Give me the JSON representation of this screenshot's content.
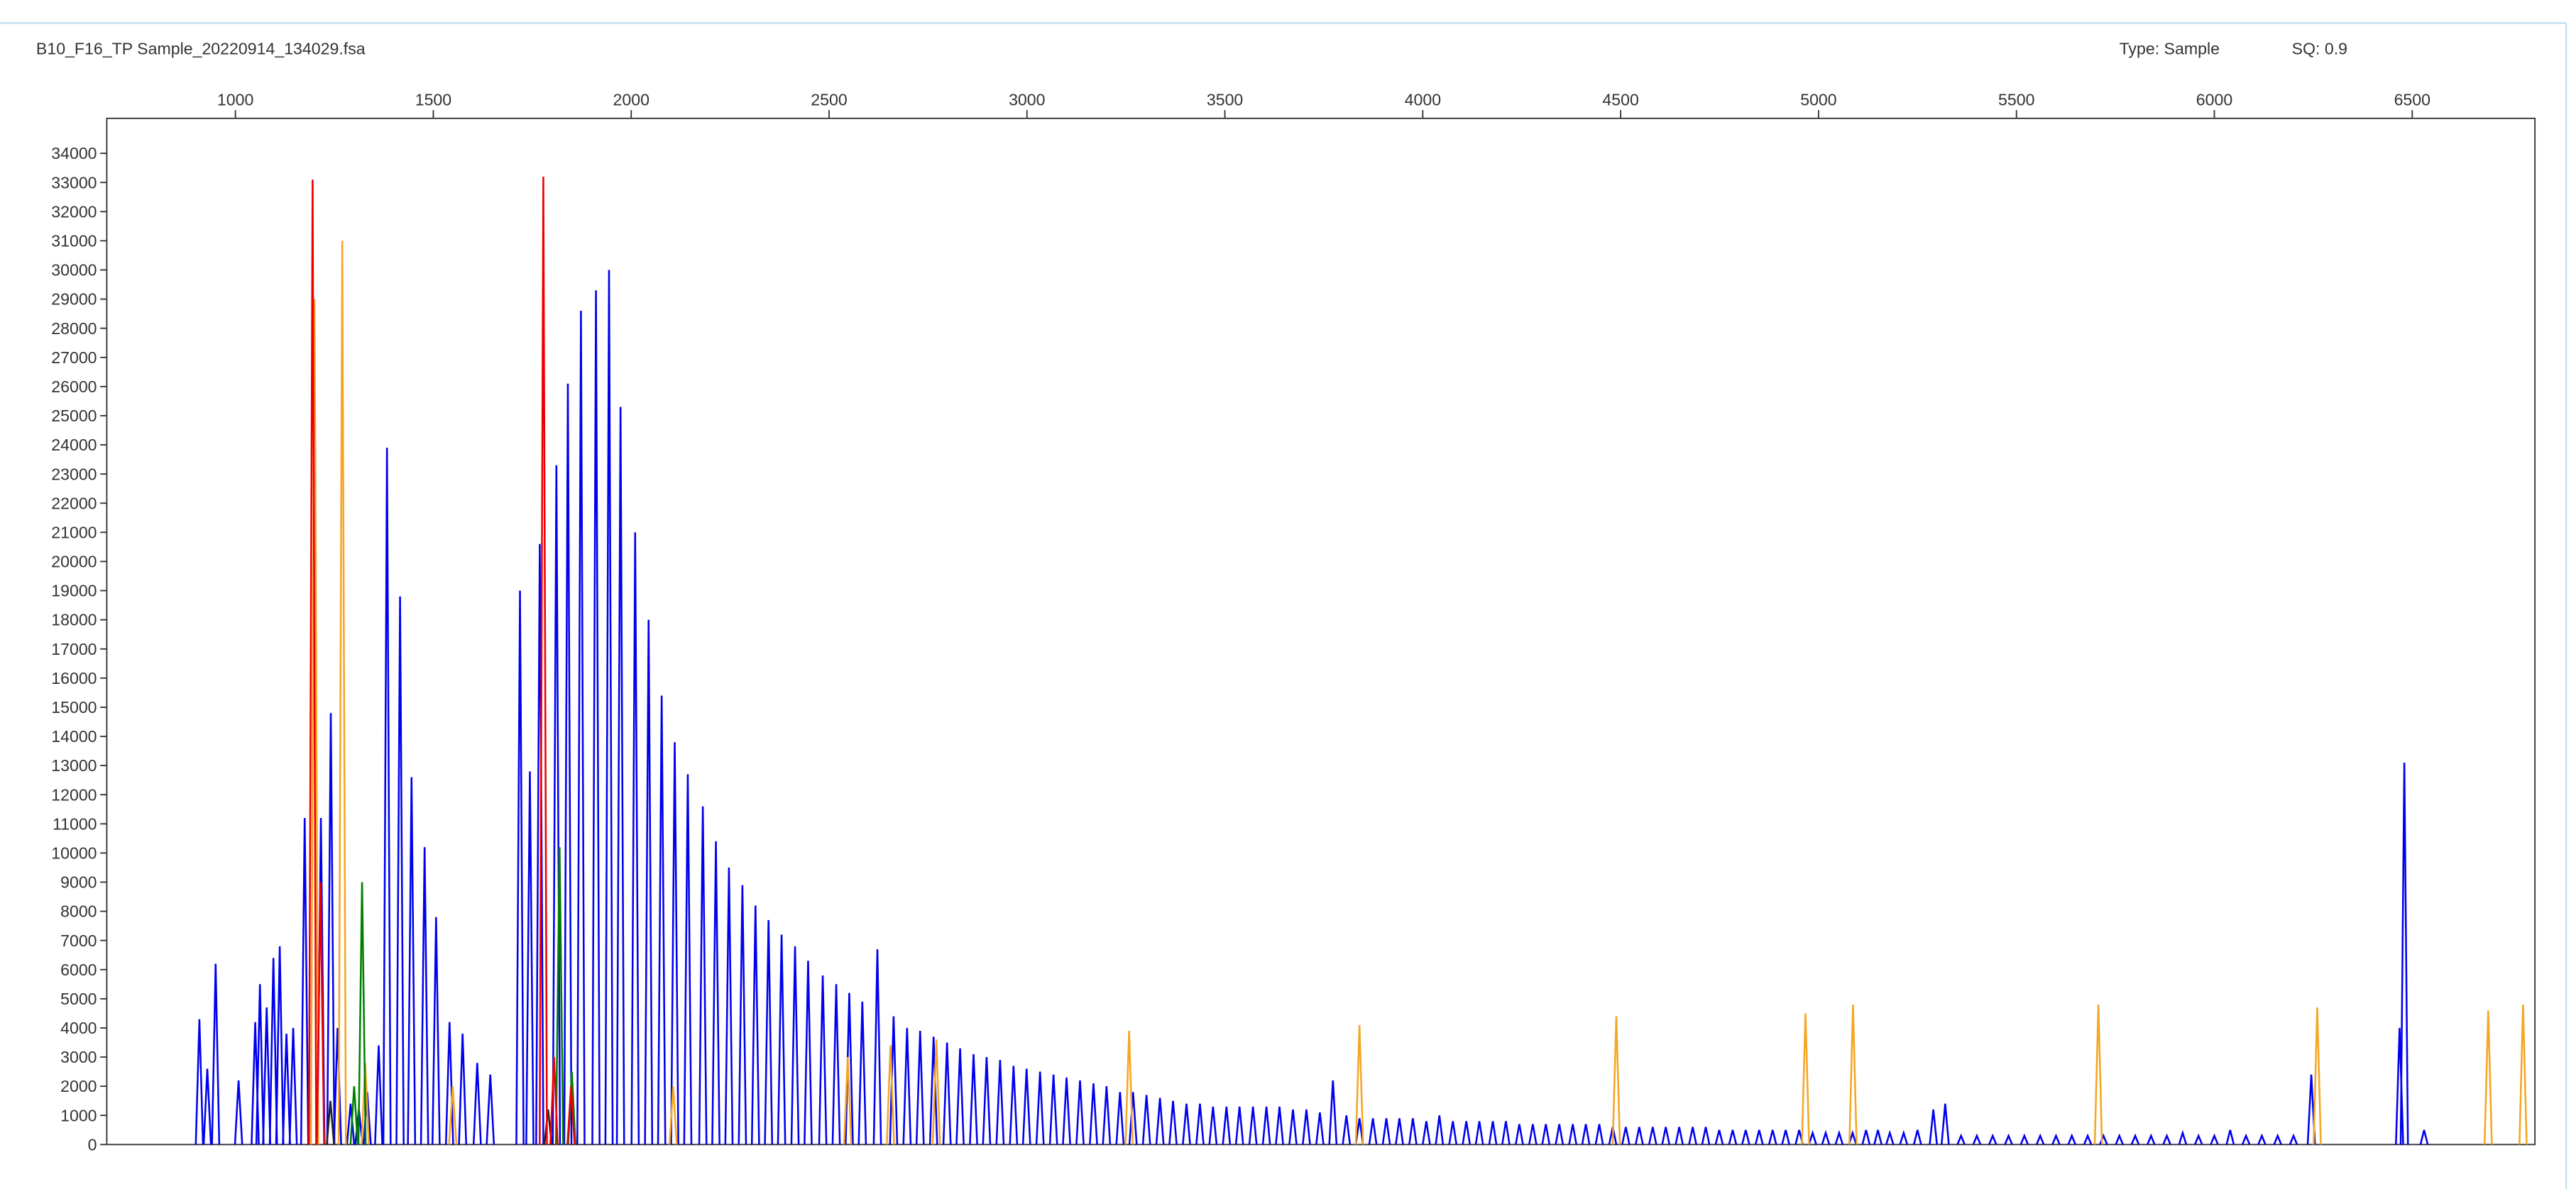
{
  "header": {
    "title": "B10_F16_TP Sample_20220914_134029.fsa",
    "type": "Type: Sample",
    "sq": "SQ: 0.9"
  },
  "chart_data": {
    "type": "line",
    "xlim": [
      675,
      6810
    ],
    "ylim": [
      0,
      35200
    ],
    "xticks": [
      1000,
      1500,
      2000,
      2500,
      3000,
      3500,
      4000,
      4500,
      5000,
      5500,
      6000,
      6500
    ],
    "yticks": [
      0,
      1000,
      2000,
      3000,
      4000,
      5000,
      6000,
      7000,
      8000,
      9000,
      10000,
      11000,
      12000,
      13000,
      14000,
      15000,
      16000,
      17000,
      18000,
      19000,
      20000,
      21000,
      22000,
      23000,
      24000,
      25000,
      26000,
      27000,
      28000,
      29000,
      30000,
      31000,
      32000,
      33000,
      34000
    ],
    "series": [
      {
        "color": "#0000ee",
        "x": [
          909,
          929,
          950,
          1008,
          1050,
          1062,
          1079,
          1096,
          1112,
          1129,
          1146,
          1175,
          1216,
          1241,
          1258,
          1291,
          1312,
          1333,
          1362,
          1383,
          1416,
          1445,
          1478,
          1507,
          1541,
          1574,
          1611,
          1644,
          1719,
          1744,
          1769,
          1811,
          1840,
          1873,
          1911,
          1944,
          1973,
          2010,
          2044,
          2077,
          2110,
          2143,
          2181,
          2214,
          2247,
          2281,
          2314,
          2347,
          2380,
          2414,
          2447,
          2484,
          2518,
          2551,
          2584,
          2622,
          2663,
          2697,
          2730,
          2764,
          2798,
          2831,
          2865,
          2898,
          2932,
          2966,
          2999,
          3033,
          3067,
          3100,
          3134,
          3168,
          3201,
          3235,
          3268,
          3302,
          3336,
          3369,
          3403,
          3437,
          3470,
          3504,
          3537,
          3571,
          3605,
          3638,
          3672,
          3706,
          3740,
          3773,
          3807,
          3840,
          3874,
          3908,
          3941,
          3975,
          4009,
          4042,
          4076,
          4110,
          4143,
          4177,
          4210,
          4244,
          4278,
          4311,
          4345,
          4379,
          4412,
          4446,
          4480,
          4513,
          4547,
          4581,
          4614,
          4648,
          4682,
          4715,
          4749,
          4783,
          4816,
          4850,
          4884,
          4917,
          4951,
          4985,
          5018,
          5052,
          5086,
          5120,
          5150,
          5180,
          5215,
          5250,
          5290,
          5320,
          5360,
          5400,
          5440,
          5480,
          5520,
          5560,
          5600,
          5640,
          5680,
          5720,
          5760,
          5800,
          5840,
          5880,
          5920,
          5960,
          6000,
          6040,
          6080,
          6120,
          6160,
          6200,
          6245,
          6468,
          6480,
          6530
        ],
        "values": [
          4300,
          2600,
          6200,
          2200,
          4200,
          5500,
          4700,
          6400,
          6800,
          3800,
          4000,
          11200,
          11200,
          14800,
          4000,
          1400,
          1200,
          1800,
          3400,
          23900,
          18800,
          12600,
          10200,
          7800,
          4200,
          3800,
          2800,
          2400,
          19000,
          12800,
          20600,
          23300,
          26100,
          28600,
          29300,
          30000,
          25300,
          21000,
          18000,
          15400,
          13800,
          12700,
          11600,
          10400,
          9500,
          8900,
          8200,
          7700,
          7200,
          6800,
          6300,
          5800,
          5500,
          5200,
          4900,
          6700,
          4400,
          4000,
          3900,
          3700,
          3500,
          3300,
          3100,
          3000,
          2900,
          2700,
          2600,
          2500,
          2400,
          2300,
          2200,
          2100,
          2000,
          1800,
          1800,
          1700,
          1600,
          1500,
          1400,
          1400,
          1300,
          1300,
          1300,
          1300,
          1300,
          1300,
          1200,
          1200,
          1100,
          2200,
          1000,
          900,
          900,
          900,
          900,
          900,
          800,
          1000,
          800,
          800,
          800,
          800,
          800,
          700,
          700,
          700,
          700,
          700,
          700,
          700,
          600,
          600,
          600,
          600,
          600,
          600,
          600,
          600,
          500,
          500,
          500,
          500,
          500,
          500,
          500,
          400,
          400,
          400,
          400,
          500,
          500,
          400,
          400,
          500,
          1200,
          1400,
          300,
          300,
          300,
          300,
          300,
          300,
          300,
          300,
          300,
          300,
          300,
          300,
          300,
          300,
          400,
          300,
          300,
          500,
          300,
          300,
          300,
          300,
          2400,
          4000,
          13100,
          500
        ]
      },
      {
        "color": "#f5a623",
        "x": [
          1200,
          1270,
          1328,
          1549,
          2106,
          2547,
          2655,
          2771,
          3258,
          3840,
          4489,
          4967,
          5087,
          5707,
          6260,
          6692,
          6780
        ],
        "values": [
          29000,
          31000,
          2800,
          2000,
          2000,
          3000,
          3400,
          3600,
          3900,
          4100,
          4400,
          4500,
          4800,
          4800,
          4700,
          4600,
          4800
        ]
      },
      {
        "color": "#008000",
        "x": [
          1300,
          1320,
          1819,
          1850
        ],
        "values": [
          2000,
          9000,
          10200,
          2500
        ]
      },
      {
        "color": "#222222",
        "x": [
          1240,
          1790
        ],
        "values": [
          1500,
          1200
        ]
      },
      {
        "color": "#ee0000",
        "x": [
          1195,
          1215,
          1778,
          1805,
          1848
        ],
        "values": [
          33100,
          9000,
          33200,
          3000,
          2000
        ]
      }
    ]
  }
}
